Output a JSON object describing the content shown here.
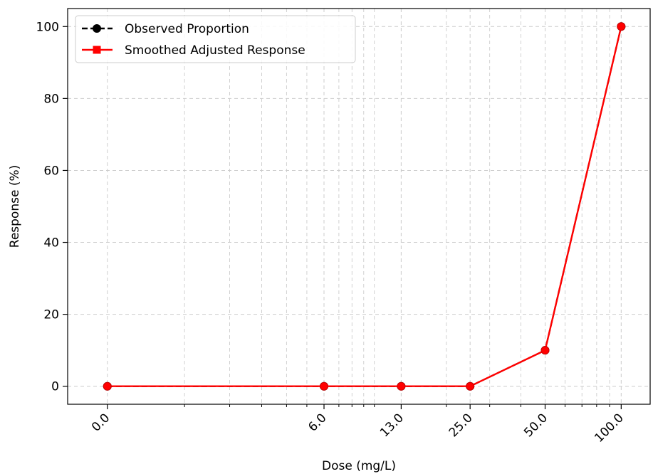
{
  "chart_data": {
    "type": "line",
    "xlabel": "Dose (mg/L)",
    "ylabel": "Response (%)",
    "x_scale": "log1p",
    "xlim": [
      -0.3,
      130
    ],
    "ylim": [
      -5,
      105
    ],
    "x_ticks": [
      0,
      6,
      13,
      25,
      50,
      100
    ],
    "x_tick_labels": [
      "0.0",
      "6.0",
      "13.0",
      "25.0",
      "50.0",
      "100.0"
    ],
    "y_ticks": [
      0,
      20,
      40,
      60,
      80,
      100
    ],
    "y_tick_labels": [
      "0",
      "20",
      "40",
      "60",
      "80",
      "100"
    ],
    "grid": true,
    "legend_position": "top-left",
    "series": [
      {
        "name": "Observed Proportion",
        "style": "dashed-circle",
        "color": "#000000",
        "x": [
          0,
          6,
          13,
          25,
          50,
          100
        ],
        "y": [
          0,
          0,
          0,
          0,
          10,
          100
        ]
      },
      {
        "name": "Smoothed Adjusted Response",
        "style": "solid-square",
        "color": "#ff0000",
        "x": [
          0,
          6,
          13,
          25,
          50,
          100
        ],
        "y": [
          0,
          0,
          0,
          0,
          10,
          100
        ]
      }
    ]
  }
}
